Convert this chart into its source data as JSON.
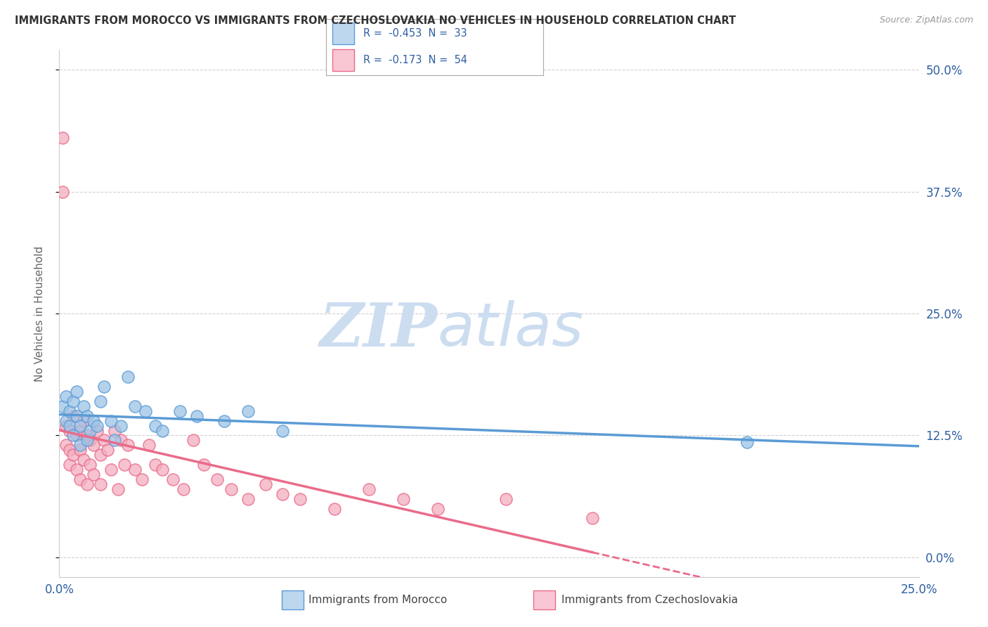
{
  "title": "IMMIGRANTS FROM MOROCCO VS IMMIGRANTS FROM CZECHOSLOVAKIA NO VEHICLES IN HOUSEHOLD CORRELATION CHART",
  "source": "Source: ZipAtlas.com",
  "ylabel": "No Vehicles in Household",
  "xlabel_morocco": "Immigrants from Morocco",
  "xlabel_czechoslovakia": "Immigrants from Czechoslovakia",
  "xlim": [
    0.0,
    0.25
  ],
  "ylim": [
    -0.02,
    0.52
  ],
  "ytick_labels": [
    "0.0%",
    "12.5%",
    "25.0%",
    "37.5%",
    "50.0%"
  ],
  "ytick_vals": [
    0.0,
    0.125,
    0.25,
    0.375,
    0.5
  ],
  "xtick_labels": [
    "0.0%",
    "25.0%"
  ],
  "xtick_vals": [
    0.0,
    0.25
  ],
  "morocco_color": "#5b9bd5",
  "morocco_color_fill": "#9dc3e6",
  "czechoslovakia_color": "#e96b8a",
  "czechoslovakia_color_fill": "#f4aec0",
  "legend_box_morocco": "#bdd7ee",
  "legend_box_czechoslovakia": "#f9c6d4",
  "legend_text_color": "#2e5fa3",
  "R_morocco": -0.453,
  "N_morocco": 33,
  "R_czechoslovakia": -0.173,
  "N_czechoslovakia": 54,
  "background_color": "#ffffff",
  "grid_color": "#cccccc",
  "watermark_zip": "ZIP",
  "watermark_atlas": "atlas",
  "watermark_color": "#ccddf0"
}
